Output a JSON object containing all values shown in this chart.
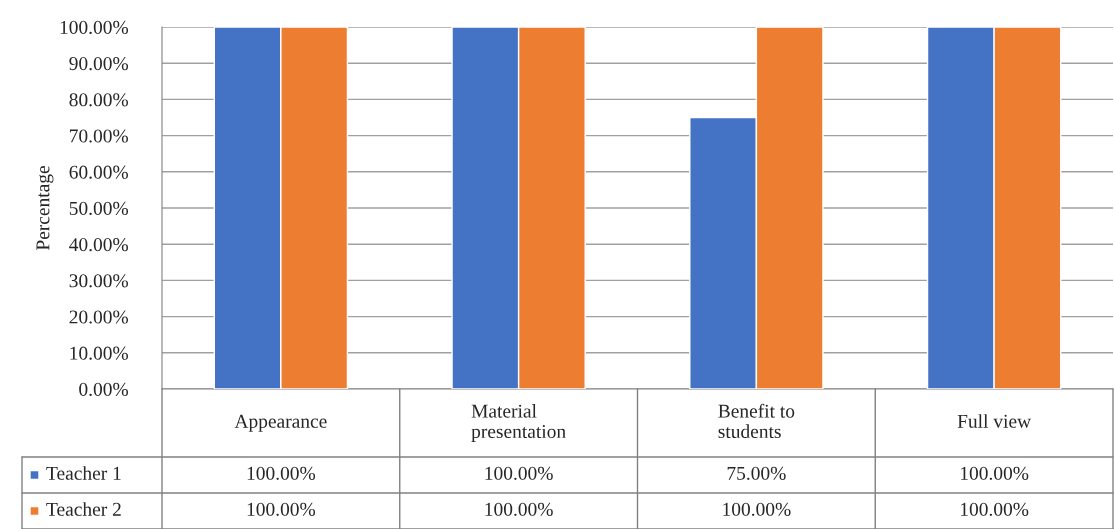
{
  "chart_data": {
    "type": "bar",
    "ylabel": "Percentage",
    "categories": [
      "Appearance",
      "Material\npresentation",
      "Benefit to\nstudents",
      "Full view"
    ],
    "series": [
      {
        "name": "Teacher 1",
        "color": "#4472c4",
        "values": [
          100,
          100,
          75,
          100
        ],
        "value_labels": [
          "100.00%",
          "100.00%",
          "75.00%",
          "100.00%"
        ]
      },
      {
        "name": "Teacher 2",
        "color": "#ed7d31",
        "values": [
          100,
          100,
          100,
          100
        ],
        "value_labels": [
          "100.00%",
          "100.00%",
          "100.00%",
          "100.00%"
        ]
      }
    ],
    "ylim": [
      0,
      100
    ],
    "yticks": [
      {
        "value": 0,
        "label": "0.00%"
      },
      {
        "value": 10,
        "label": "10.00%"
      },
      {
        "value": 20,
        "label": "20.00%"
      },
      {
        "value": 30,
        "label": "30.00%"
      },
      {
        "value": 40,
        "label": "40.00%"
      },
      {
        "value": 50,
        "label": "50.00%"
      },
      {
        "value": 60,
        "label": "60.00%"
      },
      {
        "value": 70,
        "label": "70.00%"
      },
      {
        "value": 80,
        "label": "80.00%"
      },
      {
        "value": 90,
        "label": "90.00%"
      },
      {
        "value": 100,
        "label": "100.00%"
      }
    ],
    "grid": "y",
    "legend": "bottom"
  }
}
